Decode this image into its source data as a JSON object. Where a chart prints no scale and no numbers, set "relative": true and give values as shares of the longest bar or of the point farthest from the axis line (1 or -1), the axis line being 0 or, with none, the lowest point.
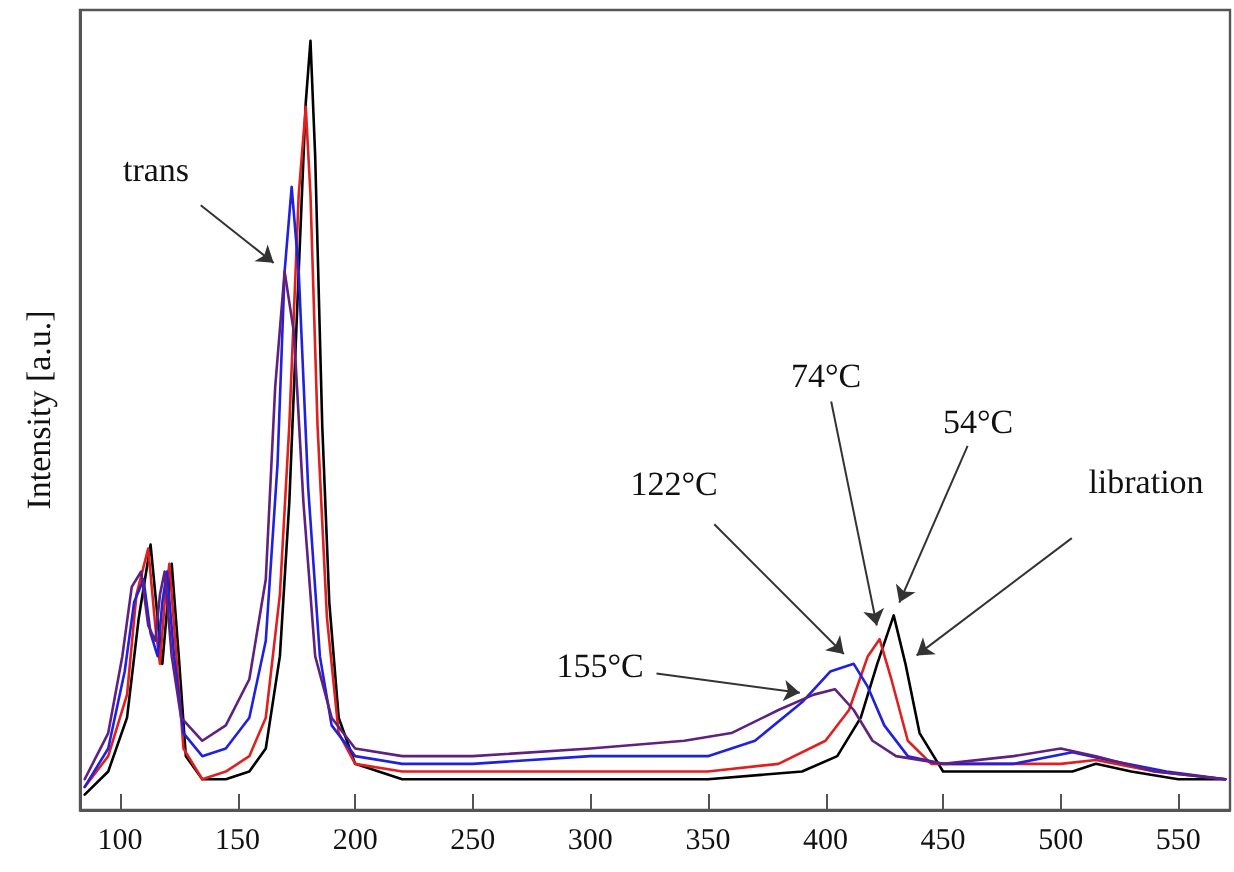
{
  "chart_data": {
    "type": "line",
    "ylabel": "Intensity [a.u.]",
    "relative": true,
    "xlim": [
      83,
      572
    ],
    "xticks": [
      100,
      150,
      200,
      250,
      300,
      350,
      400,
      450,
      500,
      550
    ],
    "grid": false,
    "marker": "none",
    "line_style": "solid",
    "annotations": [
      {
        "text": "trans",
        "x": 170,
        "y": 0.7
      },
      {
        "text": "libration",
        "x": 434,
        "y": 0.19
      },
      {
        "text": "122°C",
        "x": 412,
        "y": 0.19
      },
      {
        "text": "74°C",
        "x": 423,
        "y": 0.222
      },
      {
        "text": "54°C",
        "x": 429,
        "y": 0.253
      },
      {
        "text": "155°C",
        "x": 395,
        "y": 0.15
      }
    ],
    "series": [
      {
        "color": "#000000",
        "x": [
          85,
          95,
          103,
          108,
          113,
          116,
          118,
          120,
          122,
          125,
          128,
          135,
          145,
          155,
          162,
          168,
          172,
          176,
          179,
          181,
          183,
          186,
          189,
          193,
          200,
          220,
          250,
          300,
          350,
          390,
          405,
          415,
          422,
          429,
          434,
          440,
          450,
          470,
          490,
          505,
          515,
          530,
          550,
          570
        ],
        "values": [
          0.02,
          0.05,
          0.12,
          0.25,
          0.345,
          0.25,
          0.19,
          0.26,
          0.32,
          0.2,
          0.07,
          0.04,
          0.04,
          0.05,
          0.08,
          0.2,
          0.4,
          0.7,
          0.92,
          1.0,
          0.85,
          0.5,
          0.27,
          0.12,
          0.06,
          0.04,
          0.04,
          0.04,
          0.04,
          0.05,
          0.07,
          0.12,
          0.19,
          0.253,
          0.19,
          0.1,
          0.05,
          0.05,
          0.05,
          0.05,
          0.06,
          0.05,
          0.04,
          0.04
        ]
      },
      {
        "color": "#e0201e",
        "x": [
          85,
          95,
          103,
          107,
          112,
          115,
          117,
          119,
          121,
          124,
          127,
          135,
          145,
          155,
          162,
          168,
          172,
          176,
          179,
          181,
          184,
          188,
          193,
          200,
          220,
          250,
          300,
          350,
          380,
          400,
          410,
          418,
          423,
          428,
          435,
          445,
          470,
          500,
          515,
          540,
          570
        ],
        "values": [
          0.03,
          0.07,
          0.15,
          0.28,
          0.34,
          0.24,
          0.19,
          0.27,
          0.32,
          0.2,
          0.08,
          0.04,
          0.05,
          0.07,
          0.12,
          0.28,
          0.5,
          0.8,
          0.914,
          0.8,
          0.5,
          0.25,
          0.1,
          0.06,
          0.05,
          0.05,
          0.05,
          0.05,
          0.06,
          0.09,
          0.13,
          0.2,
          0.222,
          0.17,
          0.09,
          0.06,
          0.06,
          0.06,
          0.065,
          0.05,
          0.04
        ]
      },
      {
        "color": "#2020e0",
        "x": [
          85,
          95,
          102,
          106,
          110,
          113,
          116,
          118,
          120,
          123,
          127,
          135,
          145,
          155,
          162,
          167,
          170,
          173,
          176,
          180,
          185,
          190,
          200,
          220,
          250,
          300,
          350,
          370,
          390,
          402,
          412,
          418,
          425,
          435,
          450,
          480,
          505,
          520,
          545,
          570
        ],
        "values": [
          0.03,
          0.08,
          0.18,
          0.27,
          0.3,
          0.23,
          0.2,
          0.27,
          0.31,
          0.2,
          0.1,
          0.07,
          0.08,
          0.12,
          0.22,
          0.45,
          0.7,
          0.81,
          0.7,
          0.42,
          0.2,
          0.11,
          0.07,
          0.06,
          0.06,
          0.07,
          0.07,
          0.09,
          0.14,
          0.18,
          0.19,
          0.16,
          0.11,
          0.07,
          0.06,
          0.06,
          0.075,
          0.065,
          0.05,
          0.04
        ]
      },
      {
        "color": "#602080",
        "x": [
          85,
          95,
          101,
          105,
          109,
          112,
          115,
          117,
          119,
          122,
          126,
          135,
          145,
          155,
          162,
          166,
          170,
          174,
          178,
          183,
          190,
          200,
          220,
          250,
          300,
          340,
          360,
          380,
          395,
          404,
          412,
          420,
          430,
          450,
          480,
          500,
          515,
          540,
          570
        ],
        "values": [
          0.04,
          0.1,
          0.2,
          0.29,
          0.31,
          0.24,
          0.22,
          0.28,
          0.31,
          0.2,
          0.12,
          0.09,
          0.11,
          0.17,
          0.3,
          0.55,
          0.7,
          0.62,
          0.4,
          0.2,
          0.12,
          0.08,
          0.07,
          0.07,
          0.08,
          0.09,
          0.1,
          0.13,
          0.15,
          0.157,
          0.13,
          0.09,
          0.07,
          0.06,
          0.07,
          0.08,
          0.07,
          0.05,
          0.04
        ]
      }
    ]
  }
}
